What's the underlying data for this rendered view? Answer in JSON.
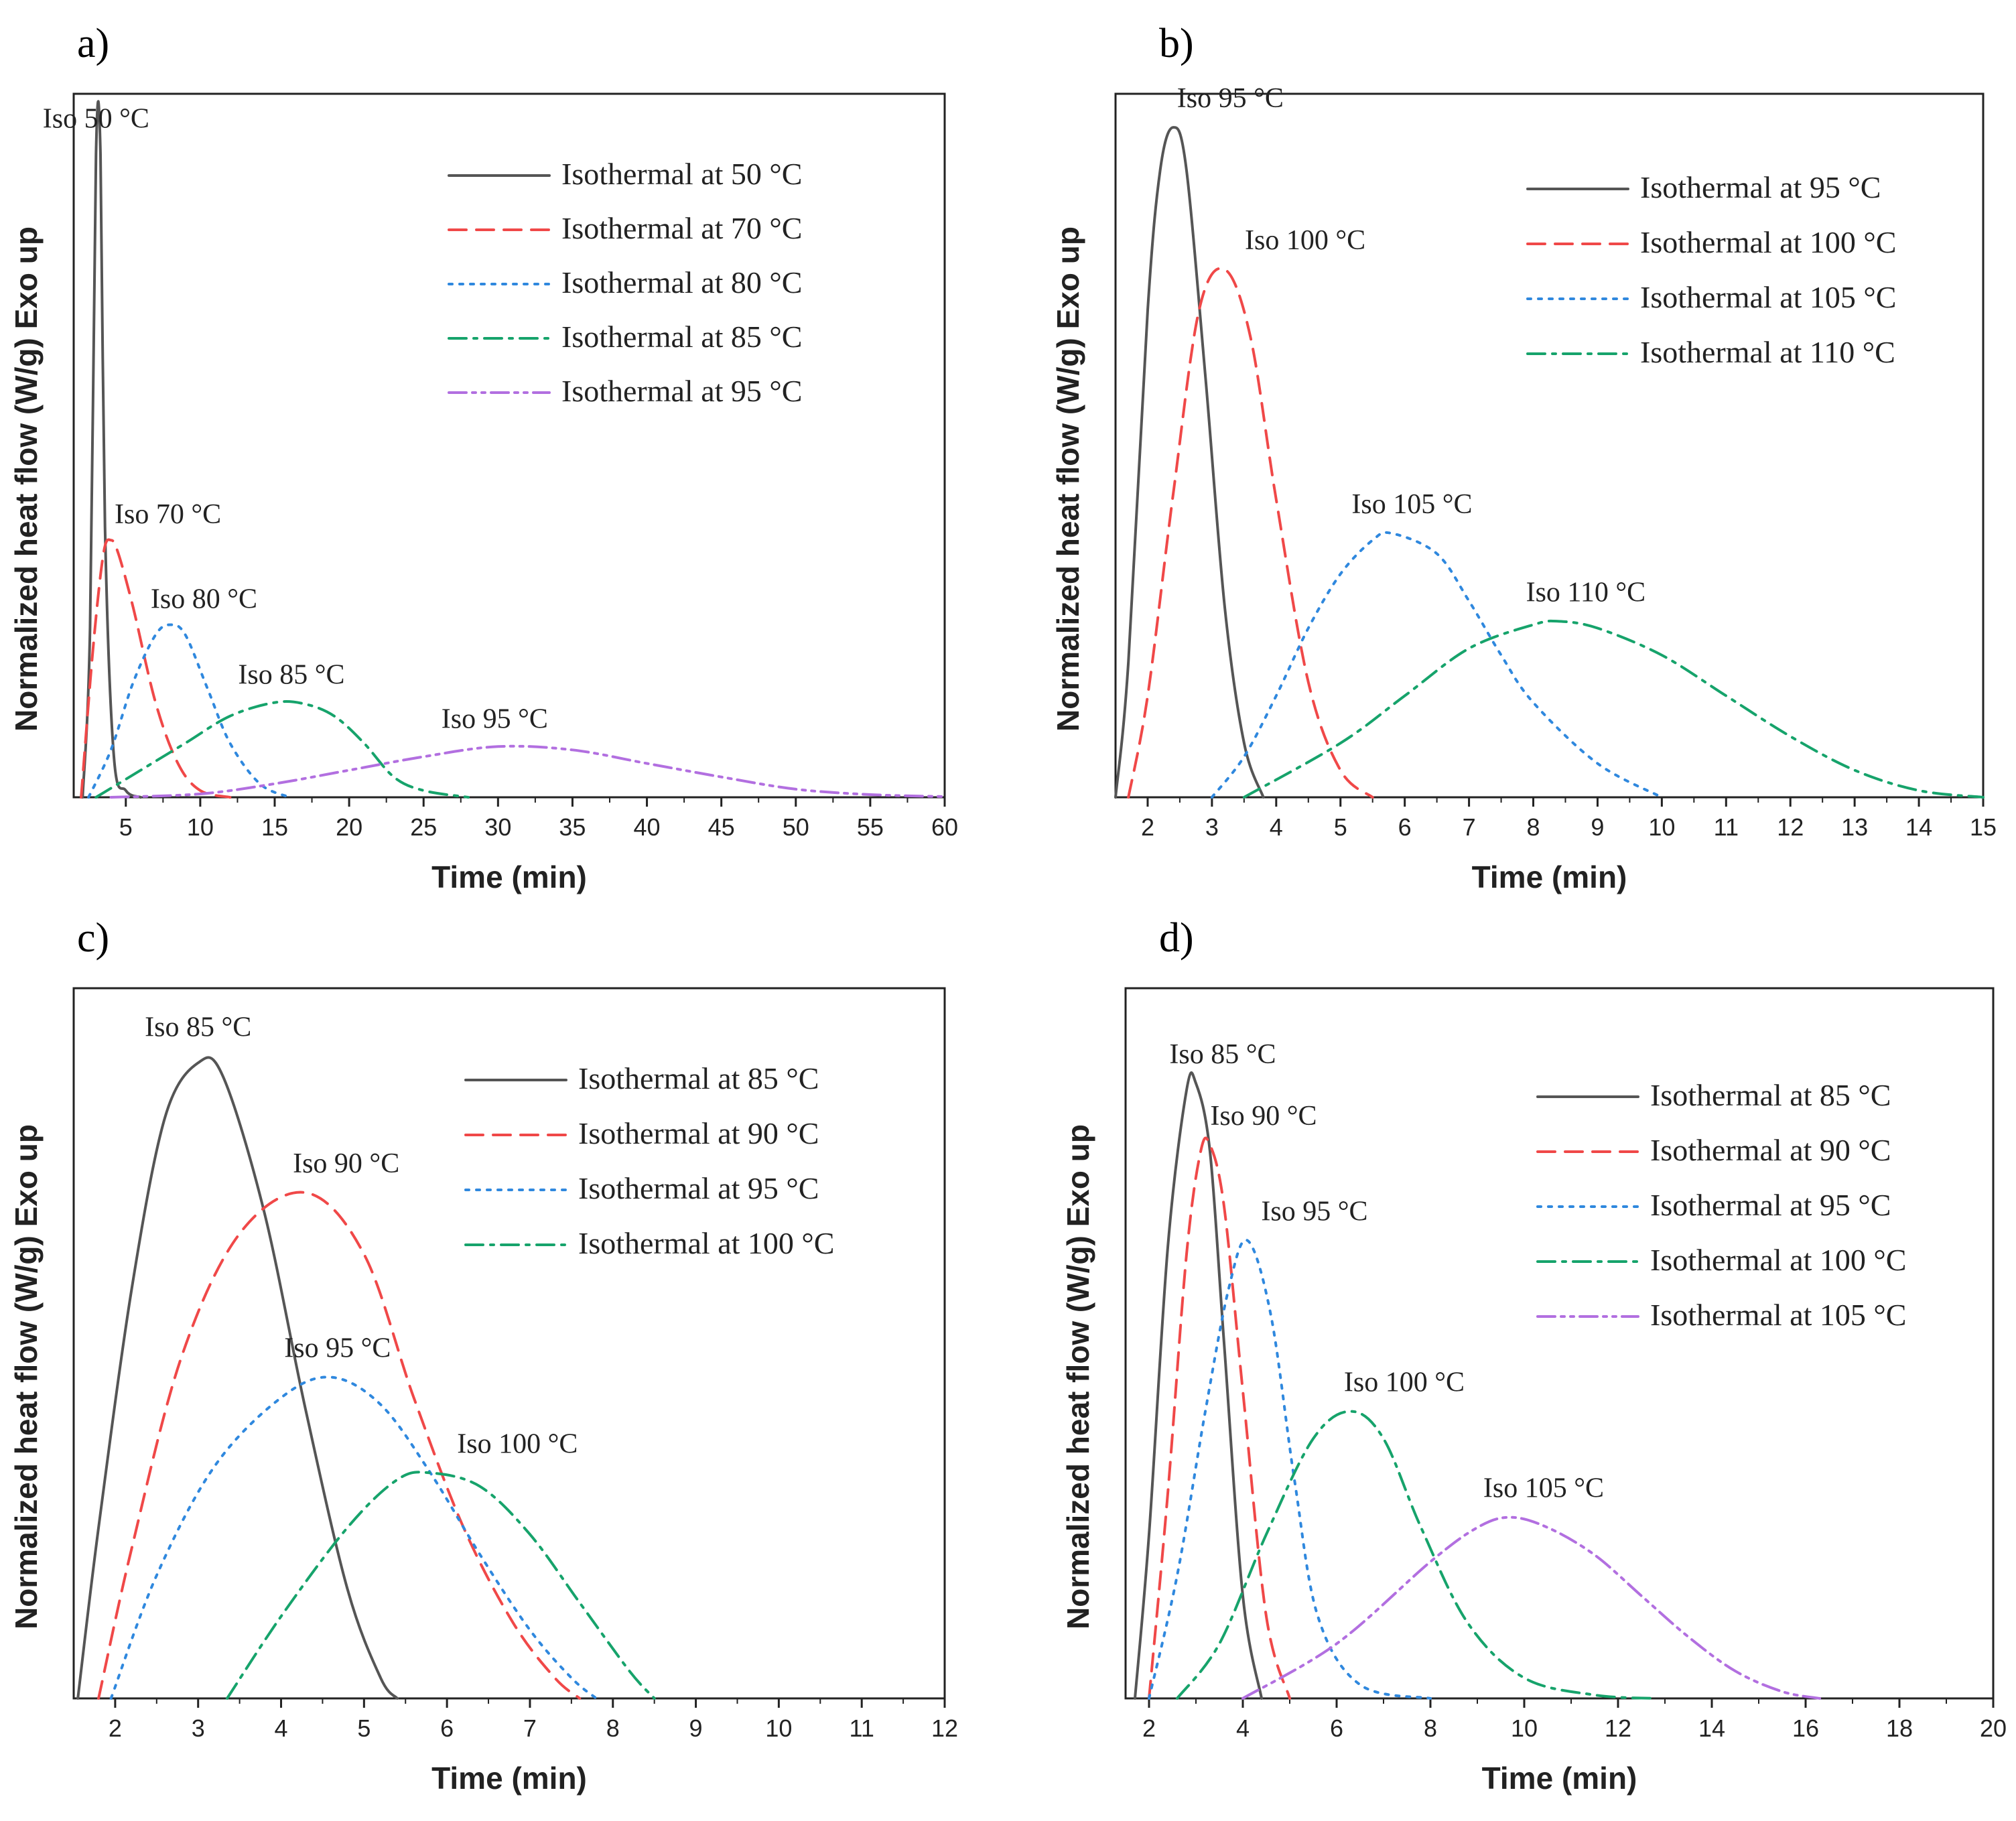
{
  "figure": {
    "panels": [
      {
        "id": "a",
        "panel_label": "a)",
        "chart_data": {
          "type": "line",
          "xlabel": "Time (min)",
          "ylabel": "Normalized heat flow (W/g) Exo up",
          "xlim": [
            1.5,
            60
          ],
          "ylim": [
            0,
            1.0
          ],
          "xticks": [
            5,
            10,
            15,
            20,
            25,
            30,
            35,
            40,
            45,
            50,
            55,
            60
          ],
          "grid": false,
          "legend_position": "top-right",
          "series": [
            {
              "name": "Isothermal at 50 °C",
              "peak_label": "Iso 50 °C",
              "color": "#555555",
              "style": "solid",
              "x": [
                2.1,
                2.6,
                3.0,
                3.3,
                3.6,
                4.2,
                5.0,
                6.0
              ],
              "y": [
                0.0,
                0.25,
                0.95,
                0.95,
                0.4,
                0.06,
                0.01,
                0.0
              ]
            },
            {
              "name": "Isothermal at 70 °C",
              "peak_label": "Iso 70 °C",
              "color": "#f04848",
              "style": "dashed",
              "x": [
                2.0,
                2.8,
                3.5,
                4.0,
                4.5,
                5.5,
                7.0,
                8.5,
                10.0,
                12.0
              ],
              "y": [
                0.0,
                0.22,
                0.36,
                0.38,
                0.36,
                0.28,
                0.14,
                0.05,
                0.01,
                0.0
              ]
            },
            {
              "name": "Isothermal at 80 °C",
              "peak_label": "Iso 80 °C",
              "color": "#2f88de",
              "style": "dotted",
              "x": [
                2.5,
                4.0,
                5.5,
                7.0,
                8.0,
                9.0,
                10.5,
                12.0,
                14.0,
                16.0
              ],
              "y": [
                0.0,
                0.07,
                0.17,
                0.24,
                0.255,
                0.24,
                0.16,
                0.08,
                0.02,
                0.0
              ]
            },
            {
              "name": "Isothermal at 85 °C",
              "peak_label": "Iso 85 °C",
              "color": "#16a36b",
              "style": "dashdot",
              "x": [
                3.0,
                6.0,
                9.0,
                12.0,
                15.0,
                17.0,
                19.0,
                21.0,
                23.0,
                25.0,
                28.0
              ],
              "y": [
                0.0,
                0.04,
                0.08,
                0.12,
                0.14,
                0.138,
                0.12,
                0.08,
                0.03,
                0.01,
                0.0
              ]
            },
            {
              "name": "Isothermal at 95 °C",
              "peak_label": "Iso 95 °C",
              "color": "#b26fe0",
              "style": "dashdotdot",
              "x": [
                4.0,
                10.0,
                15.0,
                20.0,
                25.0,
                30.0,
                35.0,
                40.0,
                45.0,
                50.0,
                55.0,
                60.0
              ],
              "y": [
                0.0,
                0.005,
                0.02,
                0.04,
                0.06,
                0.075,
                0.07,
                0.05,
                0.03,
                0.012,
                0.004,
                0.001
              ]
            }
          ]
        }
      },
      {
        "id": "b",
        "panel_label": "b)",
        "chart_data": {
          "type": "line",
          "xlabel": "Time (min)",
          "ylabel": "Normalized heat flow (W/g) Exo up",
          "xlim": [
            1.5,
            15
          ],
          "ylim": [
            0,
            1.0
          ],
          "xticks": [
            2,
            3,
            4,
            5,
            6,
            7,
            8,
            9,
            10,
            11,
            12,
            13,
            14,
            15
          ],
          "grid": false,
          "legend_position": "top-right",
          "series": [
            {
              "name": "Isothermal at 95 °C",
              "peak_label": "Iso 95 °C",
              "color": "#555555",
              "style": "solid",
              "x": [
                1.5,
                1.7,
                2.0,
                2.2,
                2.4,
                2.6,
                2.9,
                3.2,
                3.5,
                3.8
              ],
              "y": [
                0.0,
                0.2,
                0.72,
                0.93,
                0.99,
                0.93,
                0.62,
                0.28,
                0.08,
                0.0
              ]
            },
            {
              "name": "Isothermal at 100 °C",
              "peak_label": "Iso 100 °C",
              "color": "#f04848",
              "style": "dashed",
              "x": [
                1.7,
                2.0,
                2.4,
                2.8,
                3.2,
                3.6,
                4.0,
                4.5,
                5.0,
                5.5
              ],
              "y": [
                0.0,
                0.15,
                0.45,
                0.72,
                0.78,
                0.68,
                0.44,
                0.17,
                0.04,
                0.0
              ]
            },
            {
              "name": "Isothermal at 105 °C",
              "peak_label": "Iso 105 °C",
              "color": "#2f88de",
              "style": "dotted",
              "x": [
                3.0,
                3.5,
                4.0,
                4.5,
                5.0,
                5.5,
                5.8,
                6.5,
                7.0,
                7.5,
                8.0,
                9.0,
                10.0
              ],
              "y": [
                0.0,
                0.06,
                0.15,
                0.25,
                0.33,
                0.38,
                0.39,
                0.36,
                0.29,
                0.21,
                0.14,
                0.05,
                0.0
              ]
            },
            {
              "name": "Isothermal at 110 °C",
              "peak_label": "Iso 110 °C",
              "color": "#16a36b",
              "style": "dashdot",
              "x": [
                3.5,
                5.0,
                6.0,
                7.0,
                8.0,
                8.4,
                9.0,
                10.0,
                11.0,
                12.0,
                13.0,
                14.0,
                15.0
              ],
              "y": [
                0.0,
                0.08,
                0.15,
                0.22,
                0.255,
                0.26,
                0.25,
                0.21,
                0.15,
                0.09,
                0.04,
                0.01,
                0.0
              ]
            }
          ]
        }
      },
      {
        "id": "c",
        "panel_label": "c)",
        "chart_data": {
          "type": "line",
          "xlabel": "Time (min)",
          "ylabel": "Normalized heat flow (W/g) Exo up",
          "xlim": [
            1.5,
            12
          ],
          "ylim": [
            0,
            1.0
          ],
          "xticks": [
            2,
            3,
            4,
            5,
            6,
            7,
            8,
            9,
            10,
            11,
            12
          ],
          "grid": false,
          "legend_position": "top-right",
          "series": [
            {
              "name": "Isothermal at 85 °C",
              "peak_label": "Iso 85 °C",
              "color": "#555555",
              "style": "solid",
              "x": [
                1.55,
                1.8,
                2.2,
                2.6,
                3.0,
                3.3,
                3.8,
                4.3,
                4.8,
                5.2,
                5.4
              ],
              "y": [
                0.0,
                0.25,
                0.6,
                0.85,
                0.93,
                0.91,
                0.71,
                0.42,
                0.16,
                0.03,
                0.0
              ]
            },
            {
              "name": "Isothermal at 90 °C",
              "peak_label": "Iso 90 °C",
              "color": "#f04848",
              "style": "dashed",
              "x": [
                1.8,
                2.2,
                2.8,
                3.5,
                4.3,
                5.0,
                5.6,
                6.2,
                6.8,
                7.3,
                7.6
              ],
              "y": [
                0.0,
                0.22,
                0.5,
                0.68,
                0.74,
                0.65,
                0.44,
                0.25,
                0.11,
                0.03,
                0.0
              ]
            },
            {
              "name": "Isothermal at 95 °C",
              "peak_label": "Iso 95 °C",
              "color": "#2f88de",
              "style": "dotted",
              "x": [
                1.95,
                2.5,
                3.2,
                4.0,
                4.6,
                5.2,
                5.8,
                6.4,
                7.0,
                7.5,
                7.8
              ],
              "y": [
                0.0,
                0.18,
                0.34,
                0.44,
                0.47,
                0.43,
                0.33,
                0.21,
                0.1,
                0.03,
                0.0
              ]
            },
            {
              "name": "Isothermal at 100 °C",
              "peak_label": "Iso 100 °C",
              "color": "#16a36b",
              "style": "dashdot",
              "x": [
                3.35,
                4.0,
                4.8,
                5.4,
                5.8,
                6.4,
                7.0,
                7.6,
                8.2,
                8.5
              ],
              "y": [
                0.0,
                0.12,
                0.25,
                0.32,
                0.33,
                0.31,
                0.24,
                0.14,
                0.04,
                0.0
              ]
            }
          ]
        }
      },
      {
        "id": "d",
        "panel_label": "d)",
        "chart_data": {
          "type": "line",
          "xlabel": "Time (min)",
          "ylabel": "Normalized heat flow (W/g) Exo up",
          "xlim": [
            1.5,
            20
          ],
          "ylim": [
            0,
            1.0
          ],
          "xticks": [
            2,
            4,
            6,
            8,
            10,
            12,
            14,
            16,
            18,
            20
          ],
          "grid": false,
          "legend_position": "top-right",
          "series": [
            {
              "name": "Isothermal at 85 °C",
              "peak_label": "Iso 85 °C",
              "color": "#555555",
              "style": "solid",
              "x": [
                1.7,
                2.0,
                2.4,
                2.8,
                3.0,
                3.3,
                3.6,
                4.0,
                4.4
              ],
              "y": [
                0.0,
                0.24,
                0.66,
                0.89,
                0.9,
                0.8,
                0.52,
                0.15,
                0.0
              ]
            },
            {
              "name": "Isothermal at 90 °C",
              "peak_label": "Iso 90 °C",
              "color": "#f04848",
              "style": "dashed",
              "x": [
                2.0,
                2.4,
                2.8,
                3.1,
                3.3,
                3.6,
                4.0,
                4.5,
                5.0
              ],
              "y": [
                0.0,
                0.3,
                0.65,
                0.8,
                0.81,
                0.72,
                0.45,
                0.12,
                0.0
              ]
            },
            {
              "name": "Isothermal at 95 °C",
              "peak_label": "Iso 95 °C",
              "color": "#2f88de",
              "style": "dotted",
              "x": [
                2.0,
                2.6,
                3.2,
                3.7,
                4.1,
                4.6,
                5.1,
                5.6,
                6.5,
                8.0
              ],
              "y": [
                0.0,
                0.18,
                0.42,
                0.6,
                0.67,
                0.56,
                0.32,
                0.12,
                0.02,
                0.0
              ]
            },
            {
              "name": "Isothermal at 100 °C",
              "peak_label": "Iso 100 °C",
              "color": "#16a36b",
              "style": "dashdot",
              "x": [
                2.6,
                3.5,
                4.5,
                5.5,
                6.3,
                7.0,
                7.8,
                8.8,
                10.0,
                11.5,
                12.8
              ],
              "y": [
                0.0,
                0.08,
                0.24,
                0.38,
                0.42,
                0.38,
                0.25,
                0.11,
                0.03,
                0.005,
                0.0
              ]
            },
            {
              "name": "Isothermal at 105 °C",
              "peak_label": "Iso 105 °C",
              "color": "#b26fe0",
              "style": "dashdotdot",
              "x": [
                4.0,
                6.0,
                8.0,
                9.0,
                9.7,
                10.5,
                11.5,
                12.5,
                13.5,
                14.5,
                15.5,
                16.3
              ],
              "y": [
                0.0,
                0.08,
                0.2,
                0.25,
                0.265,
                0.25,
                0.21,
                0.15,
                0.09,
                0.04,
                0.01,
                0.0
              ]
            }
          ]
        }
      }
    ]
  }
}
